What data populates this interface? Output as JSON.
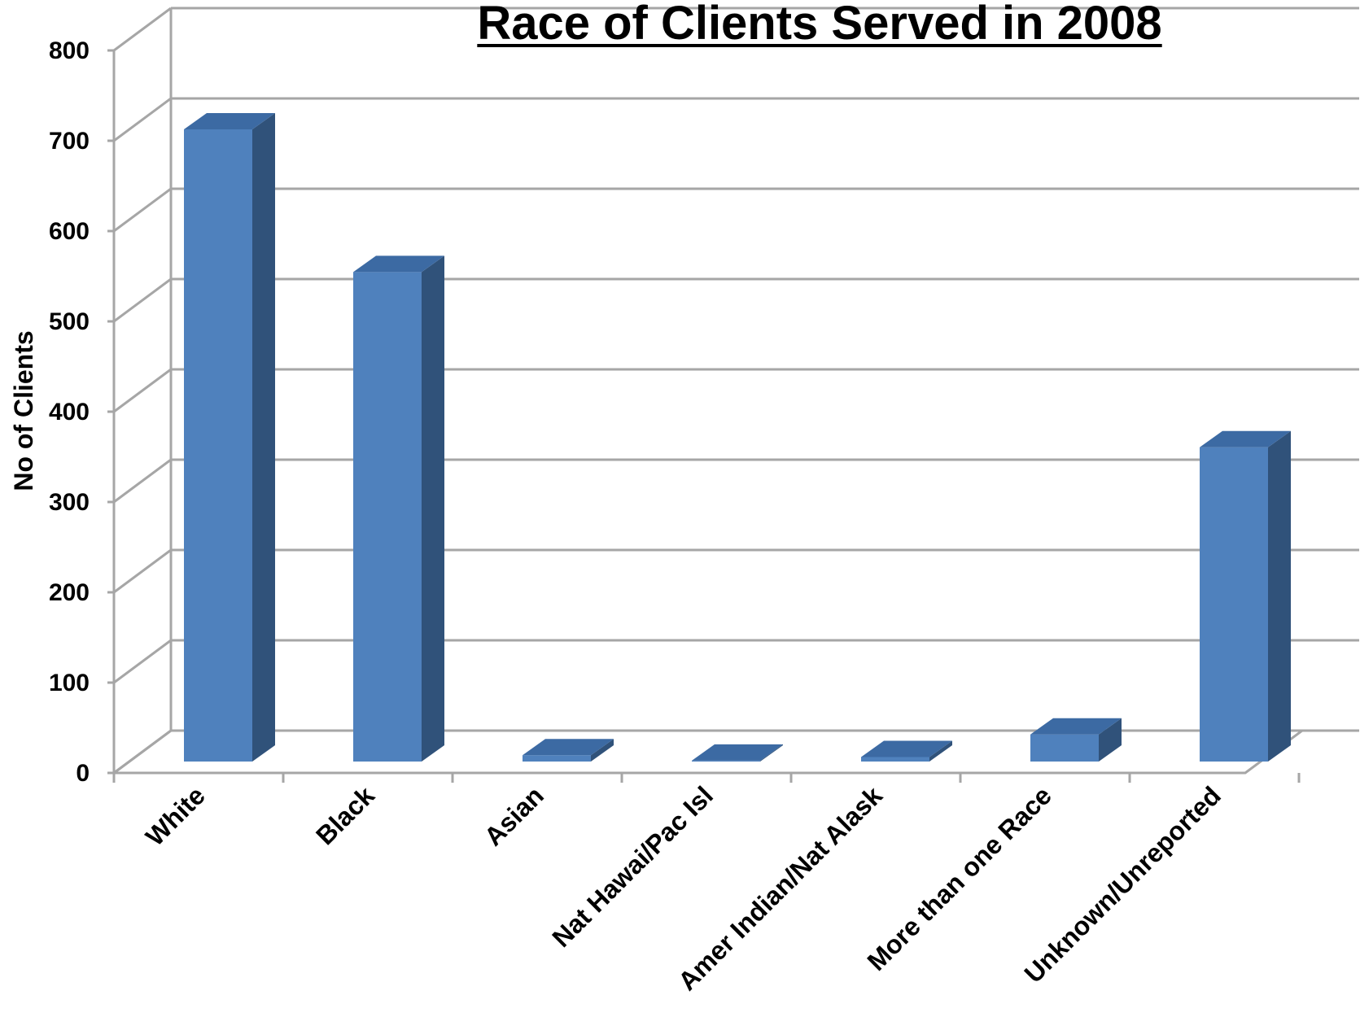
{
  "chart_data": {
    "type": "bar",
    "title": "Race of Clients Served in 2008",
    "xlabel": "",
    "ylabel": "No of Clients",
    "ylim": [
      0,
      800
    ],
    "yticks": [
      0,
      100,
      200,
      300,
      400,
      500,
      600,
      700,
      800
    ],
    "grid": true,
    "three_d": true,
    "categories": [
      "White",
      "Black",
      "Asian",
      "Nat Hawai/Pac Isl",
      "Amer Indian/Nat Alask",
      "More than one Race",
      "Unknown/Unreported"
    ],
    "values": [
      700,
      542,
      7,
      1,
      5,
      30,
      348
    ],
    "colors": {
      "bar_front": "#4f81bd",
      "bar_top": "#3c6aa3",
      "bar_side": "#30527a",
      "grid": "#a6a6a6",
      "title": "#000000"
    }
  }
}
